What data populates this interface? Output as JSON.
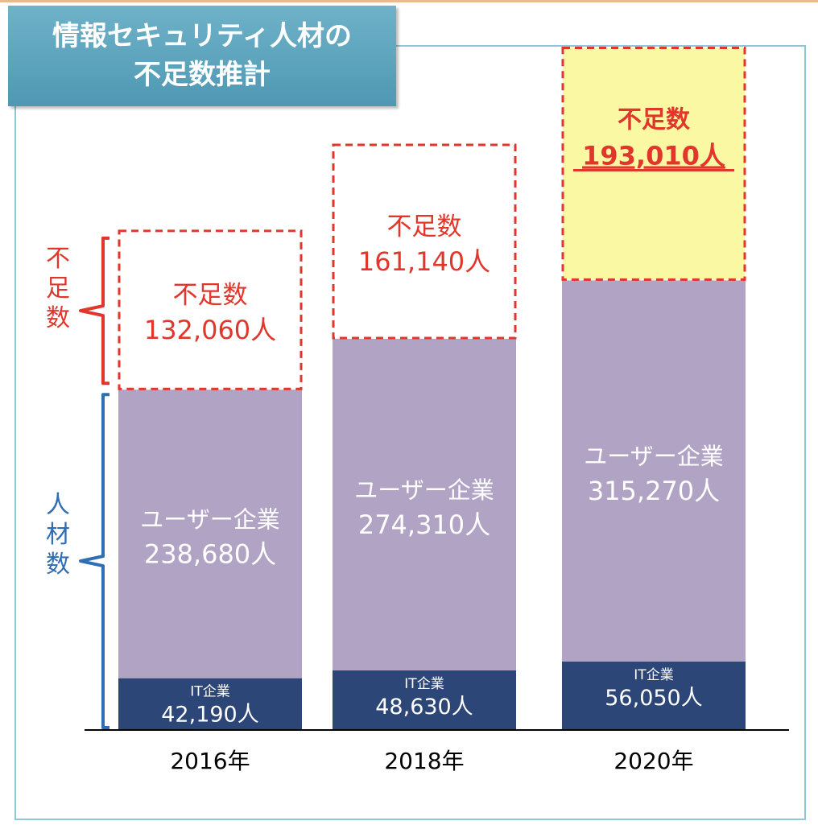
{
  "title": {
    "line1": "情報セキュリティ人材の",
    "line2": "不足数推計"
  },
  "colors": {
    "it": "#2c4677",
    "user": "#b0a3c4",
    "shortage_border": "#e0362b",
    "shortage_text": "#e0362b",
    "shortage_highlight": "#fbf8a4",
    "brace_shortage": "#e0362b",
    "brace_talent": "#2f6db5",
    "title_bg": "#5aa4bf",
    "frame": "#8ec8d6"
  },
  "left_labels": {
    "shortage": [
      "不",
      "足",
      "数"
    ],
    "talent": [
      "人",
      "材",
      "数"
    ]
  },
  "chart_data": {
    "type": "bar",
    "stacked": true,
    "categories": [
      "2016年",
      "2018年",
      "2020年"
    ],
    "series": [
      {
        "key": "it",
        "name": "IT企業",
        "values": [
          42190,
          48630,
          56050
        ],
        "labels": [
          "42,190人",
          "48,630人",
          "56,050人"
        ]
      },
      {
        "key": "user",
        "name": "ユーザー企業",
        "values": [
          238680,
          274310,
          315270
        ],
        "labels": [
          "238,680人",
          "274,310人",
          "315,270人"
        ]
      },
      {
        "key": "shortage",
        "name": "不足数",
        "values": [
          132060,
          161140,
          193010
        ],
        "labels": [
          "132,060人",
          "161,140人",
          "193,010人"
        ]
      }
    ],
    "ylim": [
      0,
      570000
    ],
    "title": "",
    "xlabel": "",
    "ylabel": ""
  }
}
